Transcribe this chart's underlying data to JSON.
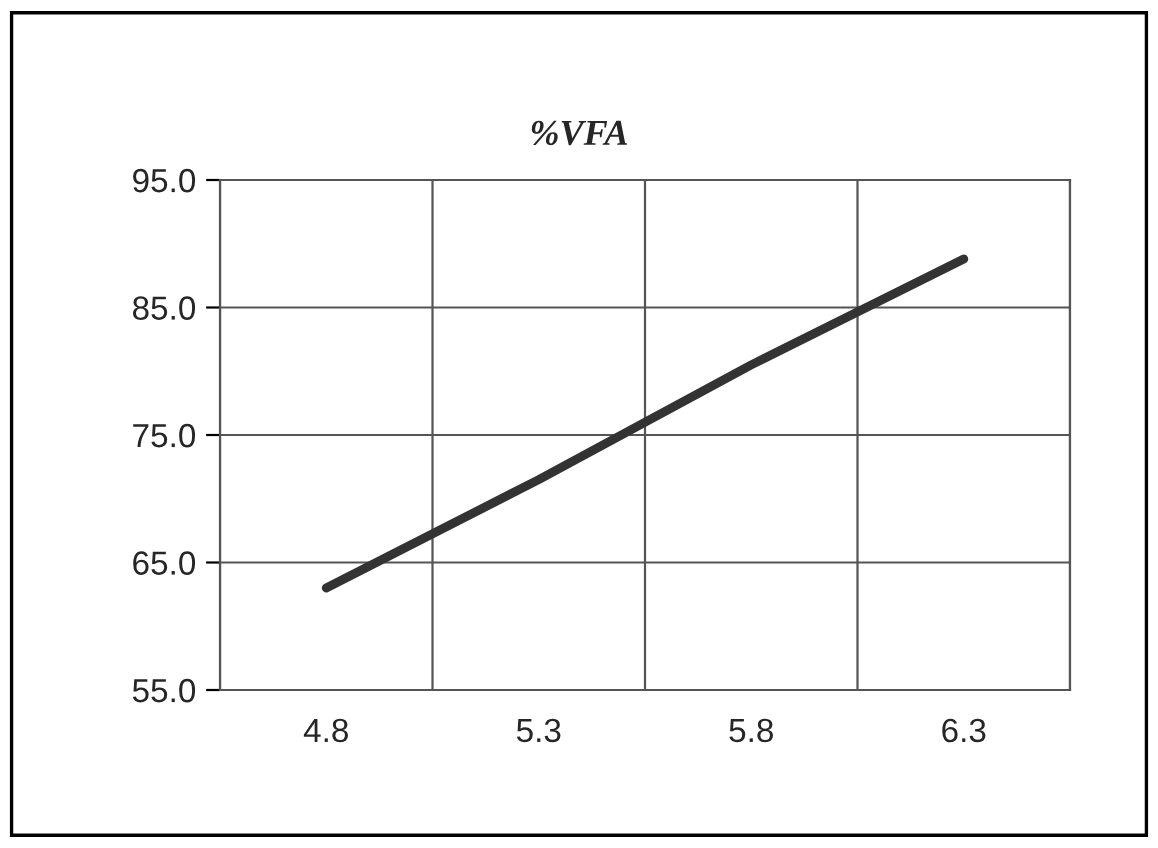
{
  "chart_data": {
    "type": "line",
    "title": "%VFA",
    "categories": [
      "4.8",
      "5.3",
      "5.8",
      "6.3"
    ],
    "series": [
      {
        "color": "#333333",
        "values": [
          63.0,
          71.5,
          80.5,
          88.8
        ]
      }
    ],
    "ylim": [
      55,
      95
    ],
    "yticks": [
      {
        "value": 55,
        "label": "55.0"
      },
      {
        "value": 65,
        "label": "65.0"
      },
      {
        "value": 75,
        "label": "75.0"
      },
      {
        "value": 85,
        "label": "85.0"
      },
      {
        "value": 95,
        "label": "95.0"
      }
    ],
    "grid": true,
    "marker": "none",
    "line_style": "solid",
    "legend": false
  }
}
